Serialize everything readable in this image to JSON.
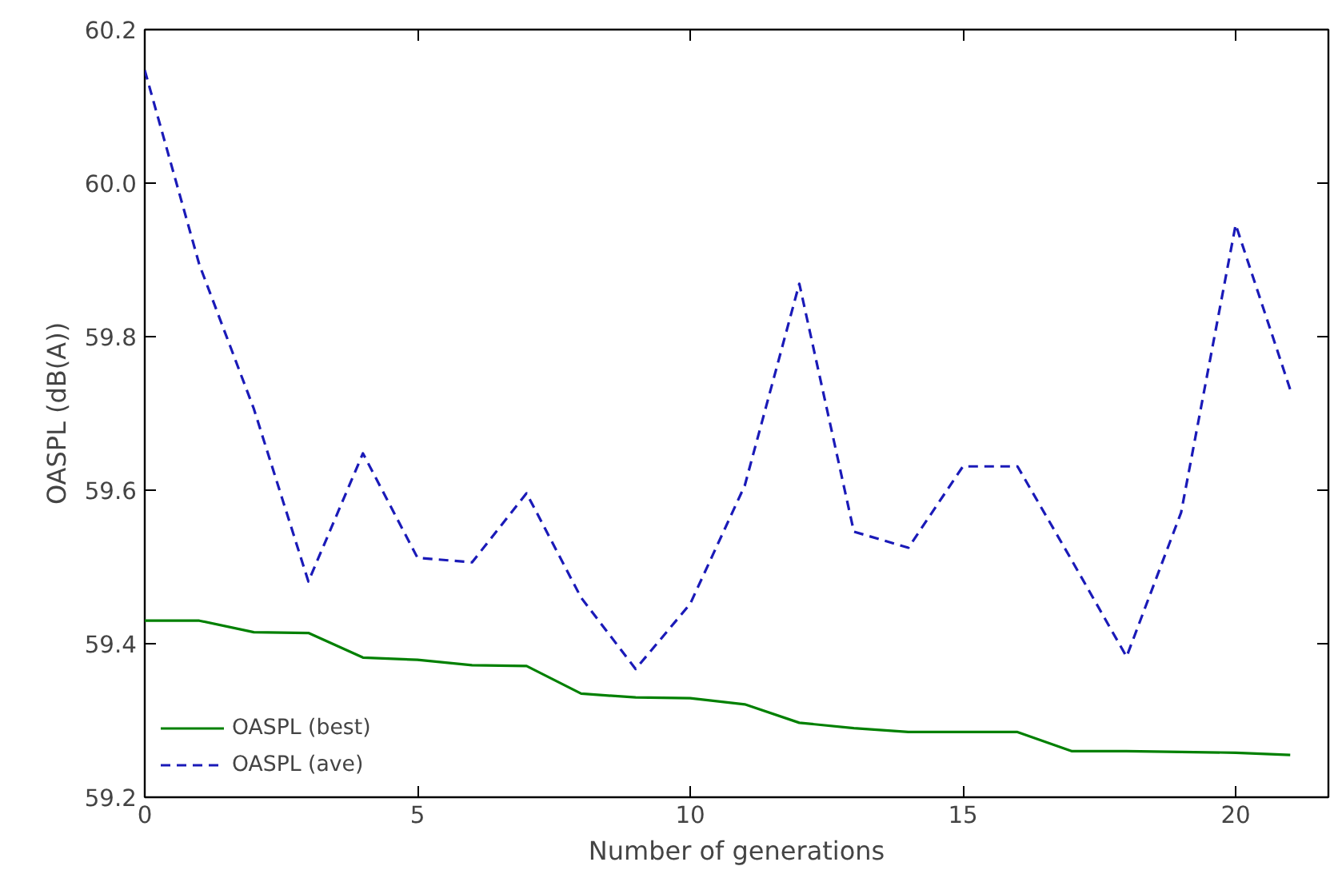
{
  "chart_data": {
    "type": "line",
    "xlabel": "Number of generations",
    "ylabel": "OASPL (dB(A))",
    "x": [
      0,
      1,
      2,
      3,
      4,
      5,
      6,
      7,
      8,
      9,
      10,
      11,
      12,
      13,
      14,
      15,
      16,
      17,
      18,
      19,
      20,
      21
    ],
    "xlim": [
      0,
      21.7
    ],
    "xticks": [
      0,
      5,
      10,
      15,
      20
    ],
    "ylim": [
      59.2,
      60.2
    ],
    "yticks": [
      {
        "value": 59.2,
        "label": "59.2"
      },
      {
        "value": 59.4,
        "label": "59.4"
      },
      {
        "value": 59.6,
        "label": "59.6"
      },
      {
        "value": 59.8,
        "label": "59.8"
      },
      {
        "value": 60.0,
        "label": "60.0"
      },
      {
        "value": 60.2,
        "label": "60.2"
      }
    ],
    "series": [
      {
        "name": "OASPL (best)",
        "color": "#008000",
        "line_style": "solid",
        "values": [
          59.43,
          59.43,
          59.415,
          59.414,
          59.382,
          59.379,
          59.372,
          59.371,
          59.335,
          59.33,
          59.329,
          59.321,
          59.297,
          59.29,
          59.285,
          59.285,
          59.285,
          59.26,
          59.26,
          59.259,
          59.258,
          59.255
        ]
      },
      {
        "name": "OASPL (ave)",
        "color": "#1a1ab8",
        "line_style": "dashed",
        "values": [
          60.147,
          59.894,
          59.706,
          59.481,
          59.648,
          59.512,
          59.506,
          59.596,
          59.46,
          59.367,
          59.452,
          59.606,
          59.869,
          59.546,
          59.525,
          59.631,
          59.631,
          59.508,
          59.383,
          59.571,
          59.946,
          59.731
        ]
      }
    ],
    "legend": "bottom left",
    "grid": false,
    "marker": "none"
  }
}
